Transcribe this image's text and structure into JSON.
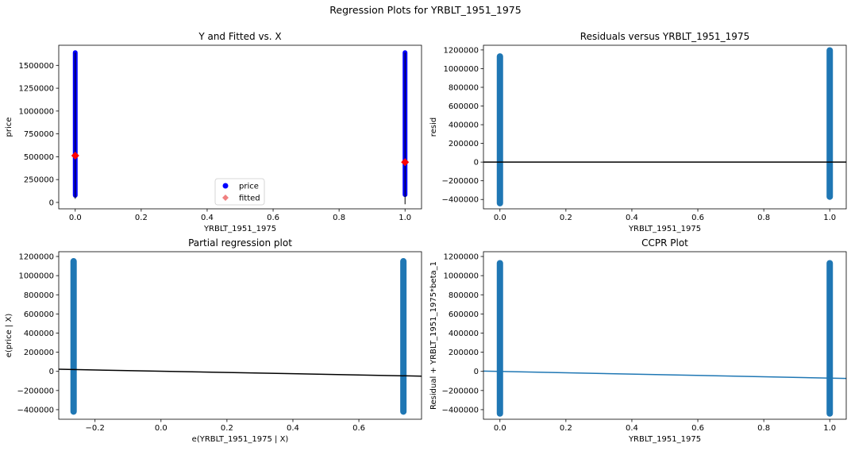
{
  "figure": {
    "suptitle": "Regression Plots for YRBLT_1951_1975"
  },
  "chart_data": [
    {
      "id": "yfit",
      "type": "scatter",
      "title": "Y and Fitted vs. X",
      "xlabel": "YRBLT_1951_1975",
      "ylabel": "price",
      "xlim": [
        -0.05,
        1.05
      ],
      "ylim": [
        -70000,
        1720000
      ],
      "xticks": [
        0.0,
        0.2,
        0.4,
        0.6,
        0.8,
        1.0
      ],
      "xtick_labels": [
        "0.0",
        "0.2",
        "0.4",
        "0.6",
        "0.8",
        "1.0"
      ],
      "yticks": [
        0,
        250000,
        500000,
        750000,
        1000000,
        1250000,
        1500000
      ],
      "ytick_labels": [
        "0",
        "250000",
        "500000",
        "750000",
        "1000000",
        "1250000",
        "1500000"
      ],
      "legend": {
        "placement": "lower-center",
        "entries": [
          "price",
          "fitted"
        ]
      },
      "price_color": "#0000ff",
      "fitted_color": "#ff0000",
      "legend_fitted_color": "#f08080",
      "point_ranges": [
        {
          "x": 0,
          "ymin": 78000,
          "ymax": 1640000
        },
        {
          "x": 1,
          "ymin": 85000,
          "ymax": 1640000
        }
      ],
      "fitted": [
        {
          "x": 0,
          "y": 512000
        },
        {
          "x": 1,
          "y": 441000
        }
      ],
      "error_bars": [
        {
          "x": 0,
          "ymin": 40000,
          "ymax": 1640000
        },
        {
          "x": 1,
          "ymin": -20000,
          "ymax": 1640000
        }
      ]
    },
    {
      "id": "resid",
      "type": "scatter",
      "title": "Residuals versus YRBLT_1951_1975",
      "xlabel": "YRBLT_1951_1975",
      "ylabel": "resid",
      "xlim": [
        -0.05,
        1.05
      ],
      "ylim": [
        -500000,
        1250000
      ],
      "xticks": [
        0.0,
        0.2,
        0.4,
        0.6,
        0.8,
        1.0
      ],
      "xtick_labels": [
        "0.0",
        "0.2",
        "0.4",
        "0.6",
        "0.8",
        "1.0"
      ],
      "yticks": [
        -400000,
        -200000,
        0,
        200000,
        400000,
        600000,
        800000,
        1000000,
        1200000
      ],
      "ytick_labels": [
        "−400000",
        "−200000",
        "0",
        "200000",
        "400000",
        "600000",
        "800000",
        "1000000",
        "1200000"
      ],
      "point_color": "#1f77b4",
      "point_ranges": [
        {
          "x": 0,
          "ymin": -440000,
          "ymax": 1130000
        },
        {
          "x": 1,
          "ymin": -370000,
          "ymax": 1195000
        }
      ],
      "hline": {
        "y": 0,
        "color": "#000000"
      }
    },
    {
      "id": "partial",
      "type": "scatter",
      "title": "Partial regression plot",
      "xlabel": "e(YRBLT_1951_1975 | X)",
      "ylabel": "e(price | X)",
      "xlim": [
        -0.31,
        0.79
      ],
      "ylim": [
        -500000,
        1250000
      ],
      "xticks": [
        -0.2,
        0.0,
        0.2,
        0.4,
        0.6
      ],
      "xtick_labels": [
        "−0.2",
        "0.0",
        "0.2",
        "0.4",
        "0.6"
      ],
      "yticks": [
        -400000,
        -200000,
        0,
        200000,
        400000,
        600000,
        800000,
        1000000,
        1200000
      ],
      "ytick_labels": [
        "−400000",
        "−200000",
        "0",
        "200000",
        "400000",
        "600000",
        "800000",
        "1000000",
        "1200000"
      ],
      "point_color": "#1f77b4",
      "point_ranges": [
        {
          "x": -0.265,
          "ymin": -420000,
          "ymax": 1150000
        },
        {
          "x": 0.735,
          "ymin": -420000,
          "ymax": 1150000
        }
      ],
      "fit_line": {
        "x": [
          -0.31,
          0.79
        ],
        "y": [
          22000,
          -50000
        ],
        "color": "#000000"
      }
    },
    {
      "id": "ccpr",
      "type": "scatter",
      "title": "CCPR Plot",
      "xlabel": "YRBLT_1951_1975",
      "ylabel": "Residual + YRBLT_1951_1975*beta_1",
      "xlim": [
        -0.05,
        1.05
      ],
      "ylim": [
        -500000,
        1250000
      ],
      "xticks": [
        0.0,
        0.2,
        0.4,
        0.6,
        0.8,
        1.0
      ],
      "xtick_labels": [
        "0.0",
        "0.2",
        "0.4",
        "0.6",
        "0.8",
        "1.0"
      ],
      "yticks": [
        -400000,
        -200000,
        0,
        200000,
        400000,
        600000,
        800000,
        1000000,
        1200000
      ],
      "ytick_labels": [
        "−400000",
        "−200000",
        "0",
        "200000",
        "400000",
        "600000",
        "800000",
        "1000000",
        "1200000"
      ],
      "point_color": "#1f77b4",
      "point_ranges": [
        {
          "x": 0,
          "ymin": -440000,
          "ymax": 1130000
        },
        {
          "x": 1,
          "ymin": -440000,
          "ymax": 1130000
        }
      ],
      "fit_line": {
        "x": [
          -0.05,
          1.05
        ],
        "y": [
          3000,
          -74000
        ],
        "color": "#1f77b4"
      }
    }
  ]
}
